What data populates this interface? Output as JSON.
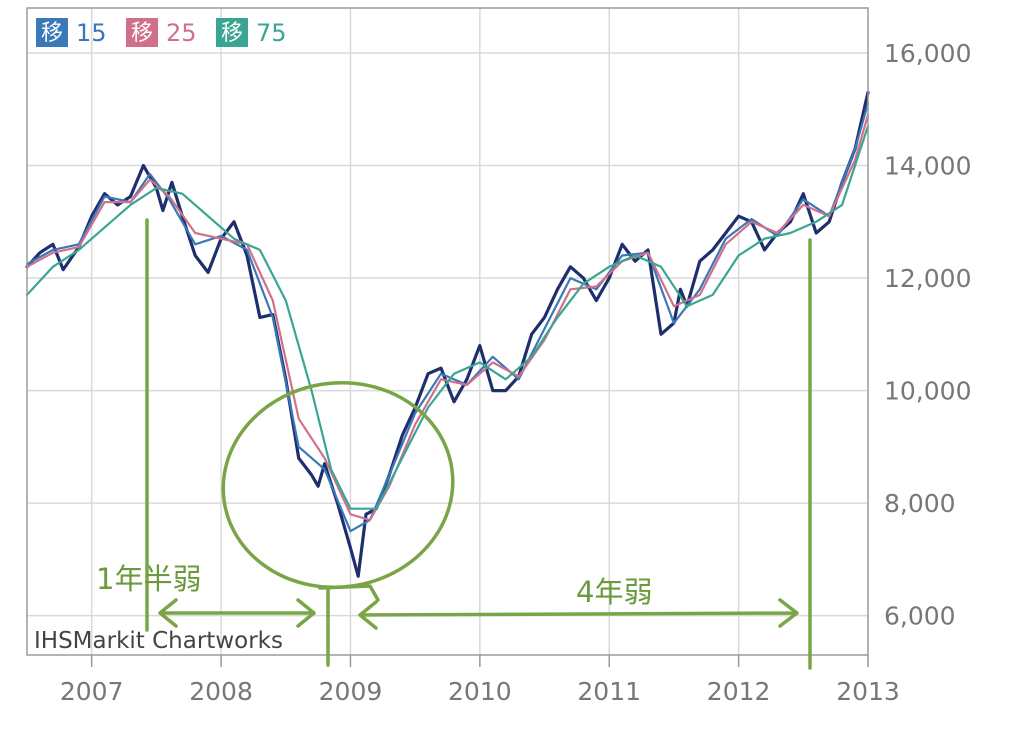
{
  "chart_data": {
    "type": "line",
    "title": "",
    "xlabel": "",
    "ylabel": "",
    "x_ticks": [
      "2007",
      "2008",
      "2009",
      "2010",
      "2011",
      "2012",
      "2013"
    ],
    "y_ticks": [
      "6,000",
      "8,000",
      "10,000",
      "12,000",
      "14,000",
      "16,000"
    ],
    "ylim": [
      5300,
      16800
    ],
    "xlim": [
      2006.5,
      2013.0
    ],
    "grid": true,
    "legend_position": "top-left",
    "legend": [
      {
        "badge": "移",
        "value": "15",
        "color": "#3a78b8"
      },
      {
        "badge": "移",
        "value": "25",
        "color": "#d1708a"
      },
      {
        "badge": "移",
        "value": "75",
        "color": "#3aa592"
      }
    ],
    "series": [
      {
        "color": "#1f2f6e",
        "x": [
          2006.5,
          2006.6,
          2006.7,
          2006.78,
          2006.9,
          2007.0,
          2007.1,
          2007.2,
          2007.3,
          2007.4,
          2007.5,
          2007.55,
          2007.62,
          2007.7,
          2007.8,
          2007.9,
          2008.0,
          2008.1,
          2008.2,
          2008.3,
          2008.4,
          2008.5,
          2008.6,
          2008.7,
          2008.75,
          2008.8,
          2008.9,
          2009.0,
          2009.06,
          2009.12,
          2009.2,
          2009.3,
          2009.4,
          2009.5,
          2009.6,
          2009.7,
          2009.8,
          2009.9,
          2010.0,
          2010.1,
          2010.2,
          2010.3,
          2010.4,
          2010.5,
          2010.6,
          2010.7,
          2010.8,
          2010.9,
          2011.0,
          2011.1,
          2011.2,
          2011.3,
          2011.4,
          2011.5,
          2011.55,
          2011.6,
          2011.7,
          2011.8,
          2011.9,
          2012.0,
          2012.1,
          2012.2,
          2012.3,
          2012.4,
          2012.5,
          2012.6,
          2012.7,
          2012.8,
          2012.9,
          2013.0
        ],
        "y": [
          12200,
          12450,
          12600,
          12150,
          12550,
          13100,
          13500,
          13300,
          13450,
          14000,
          13600,
          13200,
          13700,
          13100,
          12400,
          12100,
          12700,
          13000,
          12400,
          11300,
          11350,
          10200,
          8800,
          8500,
          8300,
          8700,
          8000,
          7200,
          6700,
          7800,
          7900,
          8500,
          9200,
          9700,
          10300,
          10400,
          9800,
          10200,
          10800,
          10000,
          10000,
          10250,
          11000,
          11300,
          11800,
          12200,
          12000,
          11600,
          12000,
          12600,
          12300,
          12500,
          11000,
          11200,
          11800,
          11500,
          12300,
          12500,
          12800,
          13100,
          13000,
          12500,
          12800,
          13000,
          13500,
          12800,
          13000,
          13700,
          14300,
          15300
        ]
      },
      {
        "name": "15",
        "color": "#3a78b8",
        "x": [
          2006.5,
          2006.7,
          2006.9,
          2007.1,
          2007.3,
          2007.45,
          2007.6,
          2007.8,
          2008.0,
          2008.2,
          2008.4,
          2008.6,
          2008.8,
          2009.0,
          2009.15,
          2009.3,
          2009.5,
          2009.7,
          2009.9,
          2010.1,
          2010.3,
          2010.5,
          2010.7,
          2010.9,
          2011.1,
          2011.3,
          2011.5,
          2011.7,
          2011.9,
          2012.1,
          2012.3,
          2012.5,
          2012.7,
          2012.9,
          2013.0
        ],
        "y": [
          12250,
          12500,
          12600,
          13450,
          13350,
          13850,
          13400,
          12600,
          12750,
          12500,
          11300,
          9000,
          8600,
          7500,
          7700,
          8500,
          9600,
          10300,
          10100,
          10600,
          10200,
          11100,
          12000,
          11800,
          12400,
          12450,
          11200,
          11800,
          12700,
          13050,
          12750,
          13400,
          13100,
          14300,
          15100
        ]
      },
      {
        "name": "25",
        "color": "#d1708a",
        "x": [
          2006.5,
          2006.7,
          2006.9,
          2007.1,
          2007.3,
          2007.45,
          2007.6,
          2007.8,
          2008.0,
          2008.2,
          2008.4,
          2008.6,
          2008.8,
          2009.0,
          2009.15,
          2009.3,
          2009.5,
          2009.7,
          2009.9,
          2010.1,
          2010.3,
          2010.5,
          2010.7,
          2010.9,
          2011.1,
          2011.3,
          2011.5,
          2011.7,
          2011.9,
          2012.1,
          2012.3,
          2012.5,
          2012.7,
          2012.9,
          2013.0
        ],
        "y": [
          12200,
          12450,
          12550,
          13350,
          13350,
          13750,
          13450,
          12800,
          12700,
          12600,
          11600,
          9500,
          8800,
          7800,
          7700,
          8300,
          9400,
          10200,
          10100,
          10500,
          10250,
          10900,
          11800,
          11850,
          12300,
          12450,
          11500,
          11700,
          12600,
          13000,
          12800,
          13300,
          13100,
          14100,
          14900
        ]
      },
      {
        "name": "75",
        "color": "#3aa592",
        "x": [
          2006.5,
          2006.7,
          2006.9,
          2007.1,
          2007.3,
          2007.5,
          2007.7,
          2007.9,
          2008.1,
          2008.3,
          2008.5,
          2008.7,
          2008.85,
          2009.0,
          2009.2,
          2009.4,
          2009.6,
          2009.8,
          2010.0,
          2010.2,
          2010.4,
          2010.6,
          2010.8,
          2011.0,
          2011.2,
          2011.4,
          2011.6,
          2011.8,
          2012.0,
          2012.2,
          2012.4,
          2012.6,
          2012.8,
          2013.0
        ],
        "y": [
          11700,
          12200,
          12500,
          12900,
          13300,
          13600,
          13500,
          13100,
          12700,
          12500,
          11600,
          10000,
          8600,
          7900,
          7900,
          8800,
          9700,
          10300,
          10500,
          10200,
          10600,
          11300,
          11900,
          12200,
          12400,
          12200,
          11500,
          11700,
          12400,
          12700,
          12800,
          13000,
          13300,
          14700
        ]
      }
    ]
  },
  "credit": "IHSMarkit Chartworks",
  "annotations": {
    "left_label": "1年半弱",
    "right_label": "4年弱",
    "color": "#6a9a3c"
  }
}
